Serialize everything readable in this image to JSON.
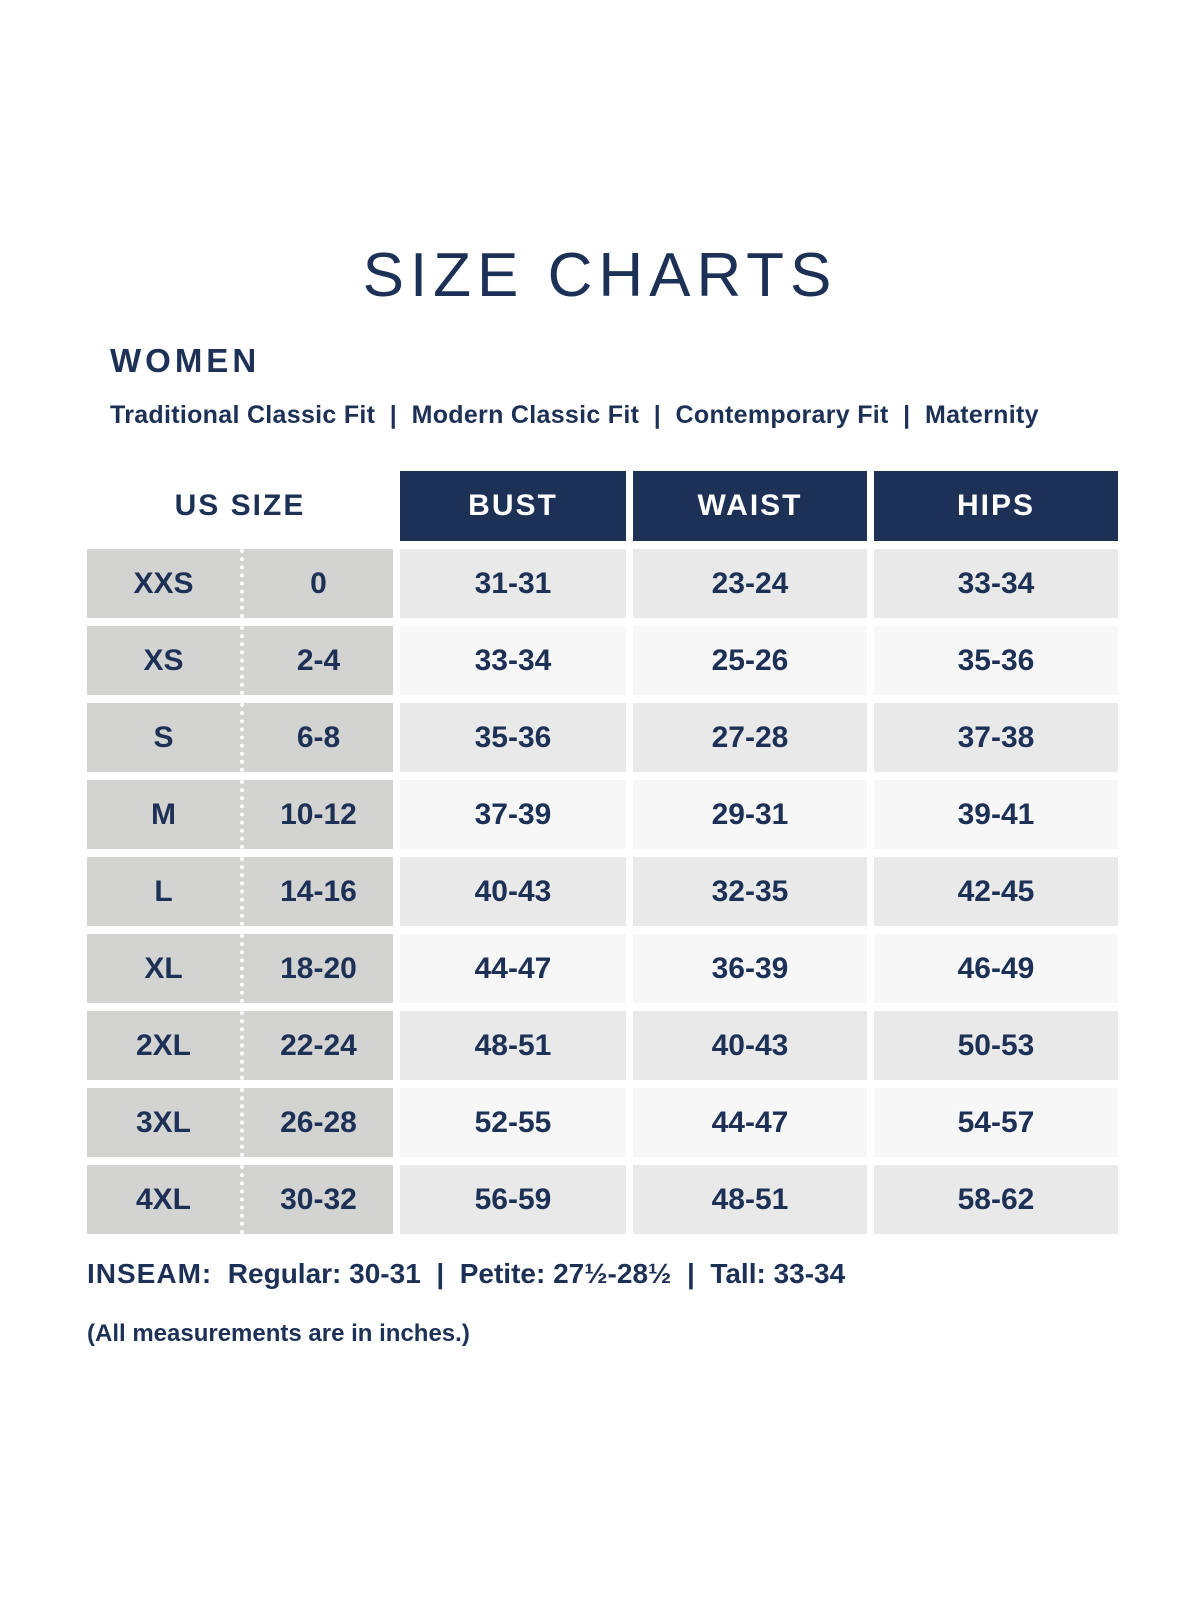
{
  "chart_data": {
    "type": "table",
    "title": "SIZE CHARTS",
    "section": "WOMEN",
    "fit_types": [
      "Traditional Classic Fit",
      "Modern Classic Fit",
      "Contemporary Fit",
      "Maternity"
    ],
    "size_col_header": "US SIZE",
    "measure_headers": [
      "BUST",
      "WAIST",
      "HIPS"
    ],
    "rows": [
      {
        "size": "XXS",
        "us_size": "0",
        "bust": "31-31",
        "waist": "23-24",
        "hips": "33-34"
      },
      {
        "size": "XS",
        "us_size": "2-4",
        "bust": "33-34",
        "waist": "25-26",
        "hips": "35-36"
      },
      {
        "size": "S",
        "us_size": "6-8",
        "bust": "35-36",
        "waist": "27-28",
        "hips": "37-38"
      },
      {
        "size": "M",
        "us_size": "10-12",
        "bust": "37-39",
        "waist": "29-31",
        "hips": "39-41"
      },
      {
        "size": "L",
        "us_size": "14-16",
        "bust": "40-43",
        "waist": "32-35",
        "hips": "42-45"
      },
      {
        "size": "XL",
        "us_size": "18-20",
        "bust": "44-47",
        "waist": "36-39",
        "hips": "46-49"
      },
      {
        "size": "2XL",
        "us_size": "22-24",
        "bust": "48-51",
        "waist": "40-43",
        "hips": "50-53"
      },
      {
        "size": "3XL",
        "us_size": "26-28",
        "bust": "52-55",
        "waist": "44-47",
        "hips": "54-57"
      },
      {
        "size": "4XL",
        "us_size": "30-32",
        "bust": "56-59",
        "waist": "48-51",
        "hips": "58-62"
      }
    ],
    "inseam": {
      "label": "INSEAM:",
      "text": "Regular: 30-31  |  Petite: 27½-28½  |  Tall: 33-34"
    },
    "note": "(All measurements are in inches.)",
    "colors": {
      "navy": "#1d3156",
      "header_bg": "#1d3156",
      "header_text": "#ffffff",
      "size_col_bg": "#d3d3d1",
      "row_shaded_bg": "#e9e9e9",
      "row_light_bg": "#f7f7f7"
    }
  }
}
